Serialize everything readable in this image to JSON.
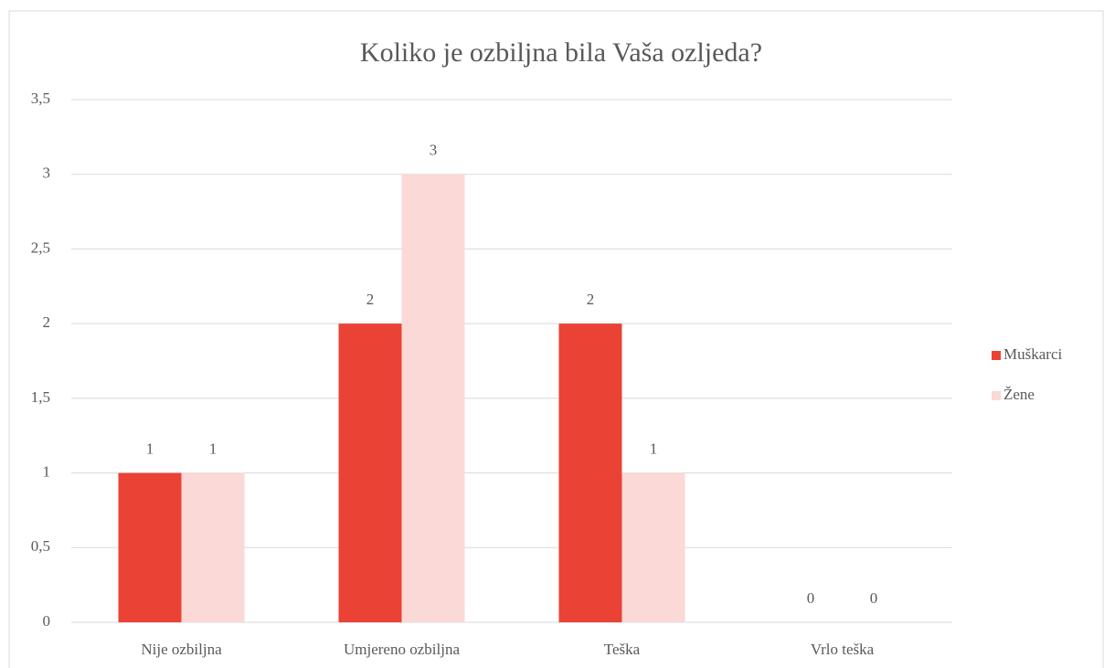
{
  "chart_data": {
    "type": "bar",
    "title": "Koliko je ozbiljna bila Vaša ozljeda?",
    "categories": [
      "Nije ozbiljna",
      "Umjereno ozbiljna",
      "Teška",
      "Vrlo teška"
    ],
    "series": [
      {
        "name": "Muškarci",
        "color": "#ea4335",
        "values": [
          1,
          2,
          2,
          0
        ]
      },
      {
        "name": "Žene",
        "color": "#fad9d6",
        "values": [
          1,
          3,
          1,
          0
        ]
      }
    ],
    "ylim": [
      0,
      3.5
    ],
    "yticks": [
      0,
      {
        "value": 0.5,
        "label": "0,5"
      },
      1,
      {
        "value": 1.5,
        "label": "1,5"
      },
      2,
      {
        "value": 2.5,
        "label": "2,5"
      },
      3,
      {
        "value": 3.5,
        "label": "3,5"
      }
    ],
    "grid": true,
    "legend": "right"
  }
}
